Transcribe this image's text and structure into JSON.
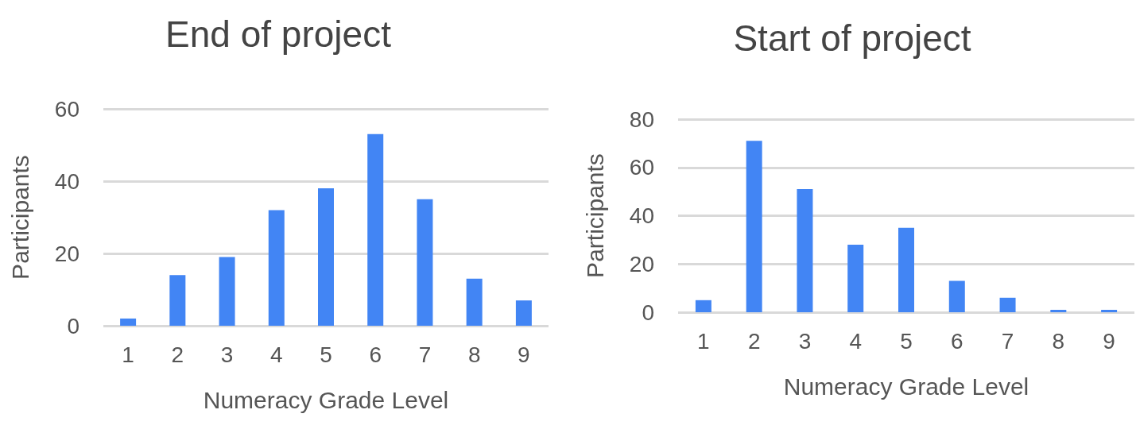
{
  "chart_data": [
    {
      "type": "bar",
      "title": "End of project",
      "xlabel": "Numeracy Grade Level",
      "ylabel": "Participants",
      "categories": [
        "1",
        "2",
        "3",
        "4",
        "5",
        "6",
        "7",
        "8",
        "9"
      ],
      "series": [
        {
          "color": "#4285f4",
          "values": [
            2,
            14,
            19,
            32,
            38,
            53,
            35,
            13,
            7
          ]
        }
      ],
      "ylim": [
        0,
        60
      ],
      "yticks": [
        0,
        20,
        40,
        60
      ],
      "grid": "y"
    },
    {
      "type": "bar",
      "title": "Start of project",
      "xlabel": "Numeracy Grade Level",
      "ylabel": "Participants",
      "categories": [
        "1",
        "2",
        "3",
        "4",
        "5",
        "6",
        "7",
        "8",
        "9"
      ],
      "series": [
        {
          "color": "#4285f4",
          "values": [
            5,
            71,
            51,
            28,
            35,
            13,
            6,
            1,
            1
          ]
        }
      ],
      "ylim": [
        0,
        80
      ],
      "yticks": [
        0,
        20,
        40,
        60,
        80
      ],
      "grid": "y"
    }
  ]
}
